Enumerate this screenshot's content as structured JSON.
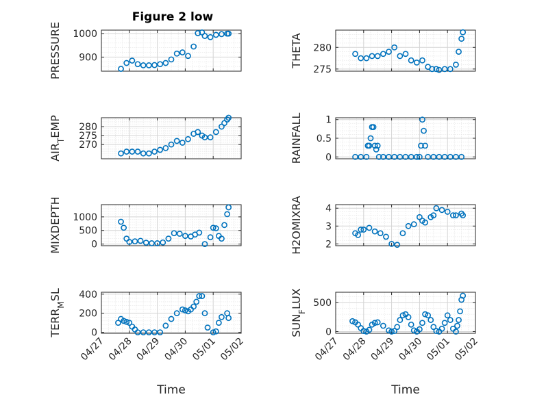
{
  "figure": {
    "title": "Figure 2 low"
  },
  "colors": {
    "series": "#0072BD",
    "axis": "#262626",
    "grid": "#d4d4d4"
  },
  "chart_data": [
    {
      "type": "scatter",
      "ylabel": "PRESSURE",
      "ylim": [
        840,
        1015
      ],
      "yticks": [
        900,
        1000
      ],
      "ytick_labels": [
        "900",
        "1000"
      ],
      "xlim": [
        0,
        5
      ],
      "grid": true,
      "series": [
        {
          "x": [
            0.7,
            0.9,
            1.1,
            1.3,
            1.5,
            1.7,
            1.9,
            2.1,
            2.3,
            2.5,
            2.7,
            2.9,
            3.1,
            3.3,
            3.45,
            3.6,
            3.7,
            3.9,
            4.1,
            4.3,
            4.5,
            4.55
          ],
          "values": [
            850,
            875,
            885,
            870,
            865,
            865,
            866,
            870,
            875,
            890,
            915,
            920,
            905,
            945,
            1002,
            1005,
            990,
            985,
            995,
            998,
            1000,
            1000
          ]
        }
      ]
    },
    {
      "type": "scatter",
      "ylabel": "THETA",
      "ylim": [
        274.5,
        284
      ],
      "yticks": [
        275,
        280
      ],
      "ytick_labels": [
        "275",
        "280"
      ],
      "xlim": [
        0,
        5
      ],
      "grid": true,
      "series": [
        {
          "x": [
            0.7,
            0.9,
            1.1,
            1.3,
            1.5,
            1.7,
            1.9,
            2.1,
            2.3,
            2.5,
            2.7,
            2.9,
            3.1,
            3.3,
            3.45,
            3.6,
            3.7,
            3.9,
            4.1,
            4.3,
            4.4,
            4.5,
            4.55
          ],
          "values": [
            278.5,
            277.5,
            277.5,
            278,
            278,
            278.5,
            279,
            280,
            278,
            278.5,
            277,
            276.5,
            277,
            275.5,
            275,
            275,
            274.8,
            275,
            275,
            276,
            279,
            282,
            283.5
          ]
        }
      ]
    },
    {
      "type": "scatter",
      "ylabel": "AIR_TEMP",
      "ylim": [
        262,
        285
      ],
      "yticks": [
        270,
        275,
        280
      ],
      "ytick_labels": [
        "270",
        "275",
        "280"
      ],
      "xlim": [
        0,
        5
      ],
      "grid": true,
      "series": [
        {
          "x": [
            0.7,
            0.9,
            1.1,
            1.3,
            1.5,
            1.7,
            1.9,
            2.1,
            2.3,
            2.5,
            2.7,
            2.9,
            3.1,
            3.3,
            3.45,
            3.6,
            3.7,
            3.9,
            4.1,
            4.3,
            4.4,
            4.5,
            4.55
          ],
          "values": [
            265,
            266,
            266,
            266,
            265,
            265,
            266,
            267,
            268,
            270,
            272,
            271,
            273,
            276,
            277,
            275,
            274,
            274,
            277,
            280,
            282,
            284,
            285
          ]
        }
      ]
    },
    {
      "type": "scatter",
      "ylabel": "RAINFALL",
      "ylim": [
        -0.05,
        1.05
      ],
      "yticks": [
        0,
        0.5,
        1
      ],
      "ytick_labels": [
        "0",
        "0.5",
        "1"
      ],
      "xlim": [
        0,
        5
      ],
      "grid": true,
      "series": [
        {
          "x": [
            0.7,
            0.9,
            1.1,
            1.15,
            1.2,
            1.25,
            1.3,
            1.35,
            1.4,
            1.45,
            1.5,
            1.55,
            1.7,
            1.9,
            2.1,
            2.3,
            2.5,
            2.7,
            2.9,
            3.0,
            3.05,
            3.1,
            3.15,
            3.2,
            3.3,
            3.5,
            3.7,
            3.9,
            4.1,
            4.3,
            4.5
          ],
          "values": [
            0,
            0,
            0,
            0.3,
            0.3,
            0.5,
            0.8,
            0.8,
            0.3,
            0.2,
            0.3,
            0,
            0,
            0,
            0,
            0,
            0,
            0,
            0,
            0,
            0.3,
            1.0,
            0.7,
            0.3,
            0,
            0,
            0,
            0,
            0,
            0,
            0
          ]
        }
      ]
    },
    {
      "type": "scatter",
      "ylabel": "MIXDEPTH",
      "ylim": [
        -60,
        1450
      ],
      "yticks": [
        0,
        500,
        1000
      ],
      "ytick_labels": [
        "0",
        "500",
        "1000"
      ],
      "xlim": [
        0,
        5
      ],
      "grid": true,
      "series": [
        {
          "x": [
            0.7,
            0.8,
            0.9,
            1.0,
            1.2,
            1.4,
            1.6,
            1.8,
            2.0,
            2.2,
            2.4,
            2.6,
            2.8,
            3.0,
            3.2,
            3.35,
            3.5,
            3.7,
            3.9,
            4.0,
            4.1,
            4.2,
            4.3,
            4.4,
            4.5,
            4.55
          ],
          "values": [
            820,
            600,
            200,
            80,
            100,
            120,
            50,
            30,
            30,
            60,
            200,
            400,
            380,
            300,
            280,
            350,
            420,
            0,
            250,
            600,
            580,
            300,
            200,
            700,
            1100,
            1350
          ]
        }
      ]
    },
    {
      "type": "scatter",
      "ylabel": "H2OMIXRA",
      "ylim": [
        1.9,
        4.2
      ],
      "yticks": [
        2,
        3,
        4
      ],
      "ytick_labels": [
        "2",
        "3",
        "4"
      ],
      "xlim": [
        0,
        5
      ],
      "grid": true,
      "series": [
        {
          "x": [
            0.7,
            0.8,
            0.9,
            1.0,
            1.2,
            1.4,
            1.6,
            1.8,
            2.0,
            2.2,
            2.4,
            2.6,
            2.8,
            3.0,
            3.1,
            3.2,
            3.4,
            3.5,
            3.6,
            3.8,
            4.0,
            4.2,
            4.3,
            4.5,
            4.55
          ],
          "values": [
            2.6,
            2.5,
            2.8,
            2.8,
            2.9,
            2.7,
            2.6,
            2.4,
            2.0,
            1.95,
            2.6,
            3.0,
            3.1,
            3.5,
            3.3,
            3.2,
            3.5,
            3.6,
            4.0,
            3.9,
            3.8,
            3.6,
            3.6,
            3.7,
            3.6
          ]
        }
      ]
    },
    {
      "type": "scatter",
      "ylabel": "TERR_MSL",
      "ylim": [
        -10,
        420
      ],
      "yticks": [
        0,
        200,
        400
      ],
      "ytick_labels": [
        "0",
        "200",
        "400"
      ],
      "xlim": [
        0,
        5
      ],
      "xticks": [
        0,
        1,
        2,
        3,
        4,
        5
      ],
      "xtick_labels": [
        "04/27",
        "04/28",
        "04/29",
        "04/30",
        "05/01",
        "05/02"
      ],
      "xlabel": "Time",
      "grid": true,
      "series": [
        {
          "x": [
            0.6,
            0.7,
            0.8,
            0.9,
            1.0,
            1.1,
            1.2,
            1.3,
            1.5,
            1.7,
            1.9,
            2.1,
            2.3,
            2.5,
            2.7,
            2.9,
            3.0,
            3.1,
            3.2,
            3.3,
            3.4,
            3.5,
            3.6,
            3.7,
            3.8,
            4.0,
            4.1,
            4.2,
            4.3,
            4.5,
            4.55
          ],
          "values": [
            100,
            140,
            120,
            110,
            100,
            60,
            30,
            0,
            0,
            0,
            0,
            0,
            70,
            140,
            200,
            240,
            230,
            220,
            240,
            270,
            320,
            380,
            380,
            200,
            50,
            0,
            10,
            100,
            160,
            200,
            150
          ]
        }
      ]
    },
    {
      "type": "scatter",
      "ylabel": "SUN_FLUX",
      "ylim": [
        -30,
        680
      ],
      "yticks": [
        0,
        500
      ],
      "ytick_labels": [
        "0",
        "500"
      ],
      "xlim": [
        0,
        5
      ],
      "xticks": [
        0,
        1,
        2,
        3,
        4,
        5
      ],
      "xtick_labels": [
        "04/27",
        "04/28",
        "04/29",
        "04/30",
        "05/01",
        "05/02"
      ],
      "xlabel": "Time",
      "grid": true,
      "series": [
        {
          "x": [
            0.6,
            0.7,
            0.8,
            0.9,
            1.0,
            1.1,
            1.2,
            1.3,
            1.4,
            1.5,
            1.7,
            1.9,
            2.0,
            2.1,
            2.2,
            2.3,
            2.4,
            2.5,
            2.6,
            2.7,
            2.8,
            2.9,
            3.0,
            3.1,
            3.2,
            3.3,
            3.4,
            3.5,
            3.6,
            3.7,
            3.8,
            3.9,
            4.0,
            4.1,
            4.2,
            4.3,
            4.35,
            4.4,
            4.45,
            4.5,
            4.55
          ],
          "values": [
            180,
            160,
            120,
            60,
            10,
            0,
            30,
            120,
            150,
            160,
            100,
            20,
            0,
            10,
            80,
            200,
            280,
            300,
            250,
            120,
            20,
            0,
            40,
            150,
            300,
            280,
            200,
            80,
            10,
            0,
            50,
            150,
            280,
            200,
            50,
            0,
            100,
            200,
            350,
            550,
            620
          ]
        }
      ]
    }
  ]
}
